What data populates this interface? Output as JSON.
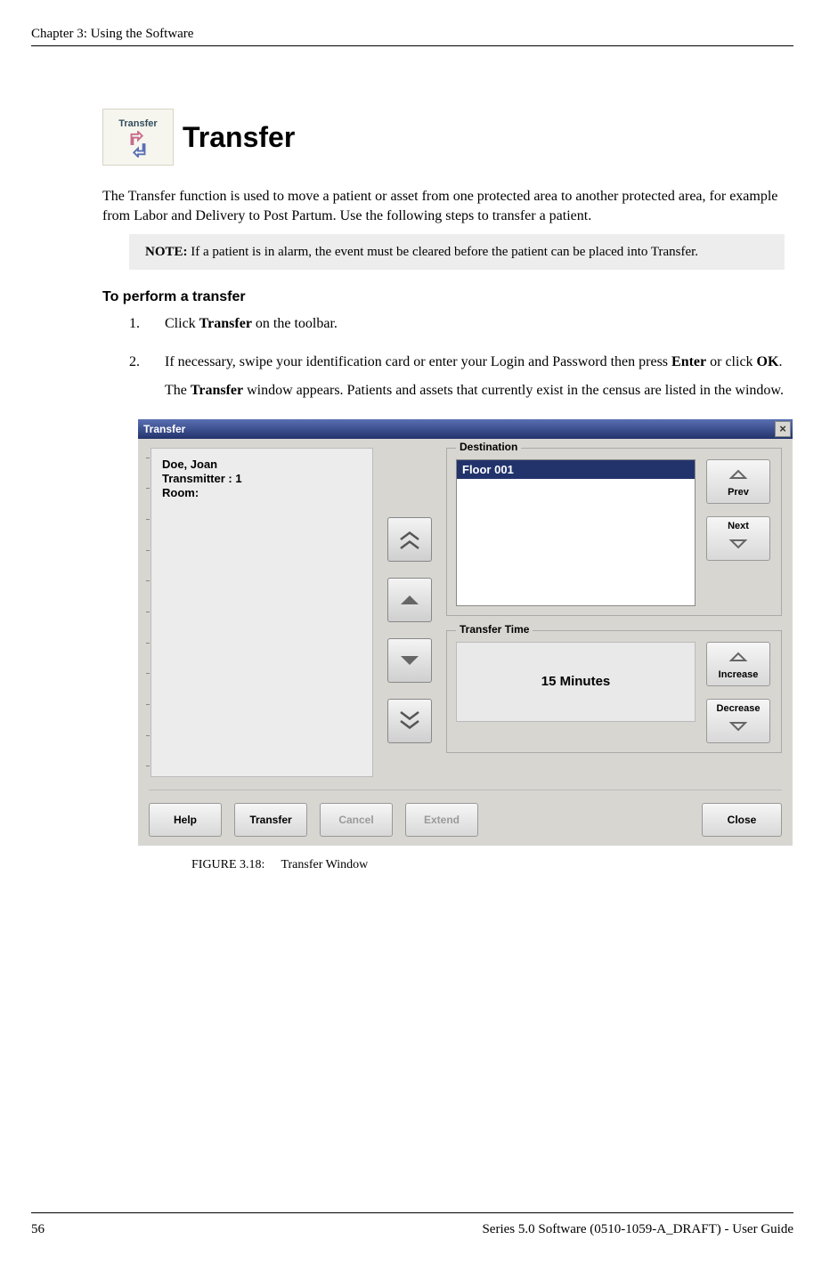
{
  "page": {
    "running_header": "Chapter 3: Using the Software",
    "page_number": "56",
    "footer_text": "Series 5.0 Software (0510-1059-A_DRAFT) - User Guide"
  },
  "section": {
    "icon_label": "Transfer",
    "title": "Transfer",
    "intro": "The Transfer function is used to move a patient or asset from one protected area to another protected area, for example from Labor and Delivery to Post Partum. Use the following steps to transfer a patient.",
    "note_label": "NOTE:",
    "note_text": " If a patient is in alarm, the event must be cleared before the patient can be placed into Transfer.",
    "subhead": "To perform a transfer",
    "steps": [
      {
        "num": "1.",
        "parts": [
          {
            "t": "Click ",
            "b": false
          },
          {
            "t": "Transfer",
            "b": true
          },
          {
            "t": " on the toolbar.",
            "b": false
          }
        ]
      },
      {
        "num": "2.",
        "parts": [
          {
            "t": "If necessary, swipe your identification card or enter your Login and Password then press ",
            "b": false
          },
          {
            "t": "Enter",
            "b": true
          },
          {
            "t": " or click ",
            "b": false
          },
          {
            "t": "OK",
            "b": true
          },
          {
            "t": ".",
            "b": false
          }
        ],
        "after_parts": [
          {
            "t": "The ",
            "b": false
          },
          {
            "t": "Transfer",
            "b": true
          },
          {
            "t": " window appears. Patients and assets that currently exist in the census are listed in the window.",
            "b": false
          }
        ]
      }
    ]
  },
  "figure": {
    "caption_label": "FIGURE 3.18:",
    "caption_text": "Transfer Window"
  },
  "screenshot": {
    "title": "Transfer",
    "close_x": "×",
    "patient": {
      "line1": "Doe, Joan",
      "line2": "Transmitter : 1",
      "line3": "Room:"
    },
    "destination": {
      "legend": "Destination",
      "selected": "Floor 001",
      "prev": "Prev",
      "next": "Next"
    },
    "transfer_time": {
      "legend": "Transfer Time",
      "value": "15 Minutes",
      "increase": "Increase",
      "decrease": "Decrease"
    },
    "buttons": {
      "help": "Help",
      "transfer": "Transfer",
      "cancel": "Cancel",
      "extend": "Extend",
      "close": "Close"
    },
    "colors": {
      "titlebar_top": "#5a6fb3",
      "titlebar_bottom": "#22336c",
      "window_bg": "#d8d6d1",
      "list_bg": "#ececec",
      "selection_bg": "#22336c"
    }
  }
}
